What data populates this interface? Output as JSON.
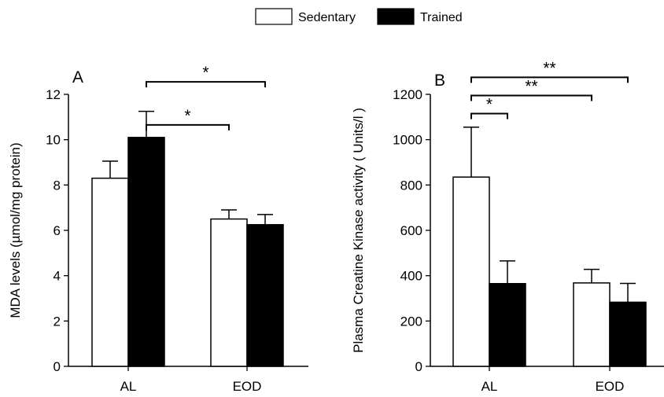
{
  "legend": [
    {
      "label": "Sedentary",
      "fill": "#ffffff"
    },
    {
      "label": "Trained",
      "fill": "#000000"
    }
  ],
  "chart_data": [
    {
      "type": "bar",
      "panel_label": "A",
      "categories": [
        "AL",
        "EOD"
      ],
      "ylabel": "MDA levels (µmol/mg protein)",
      "ylim": [
        0,
        12
      ],
      "yticks": [
        0,
        2,
        4,
        6,
        8,
        10,
        12
      ],
      "series": [
        {
          "name": "Sedentary",
          "values": [
            8.3,
            6.5
          ],
          "errors": [
            0.75,
            0.4
          ],
          "fill": "#ffffff"
        },
        {
          "name": "Trained",
          "values": [
            10.1,
            6.25
          ],
          "errors": [
            1.15,
            0.45
          ],
          "fill": "#000000"
        }
      ],
      "significance": [
        {
          "from": [
            0,
            1
          ],
          "to": [
            1,
            0
          ],
          "label": "*",
          "y": 10.65
        },
        {
          "from": [
            0,
            1
          ],
          "to": [
            1,
            1
          ],
          "label": "*",
          "y": 12.55
        }
      ]
    },
    {
      "type": "bar",
      "panel_label": "B",
      "categories": [
        "AL",
        "EOD"
      ],
      "ylabel": "Plasma Creatine Kinase activity ( Units/l )",
      "ylim": [
        0,
        1200
      ],
      "yticks": [
        0,
        200,
        400,
        600,
        800,
        1000,
        1200
      ],
      "series": [
        {
          "name": "Sedentary",
          "values": [
            835,
            368
          ],
          "errors": [
            220,
            60
          ],
          "fill": "#ffffff"
        },
        {
          "name": "Trained",
          "values": [
            365,
            283
          ],
          "errors": [
            100,
            83
          ],
          "fill": "#000000"
        }
      ],
      "significance": [
        {
          "from": [
            0,
            0
          ],
          "to": [
            0,
            1
          ],
          "label": "*",
          "y": 1115
        },
        {
          "from": [
            0,
            0
          ],
          "to": [
            1,
            0
          ],
          "label": "**",
          "y": 1195
        },
        {
          "from": [
            0,
            0
          ],
          "to": [
            1,
            1
          ],
          "label": "**",
          "y": 1275
        }
      ]
    }
  ]
}
